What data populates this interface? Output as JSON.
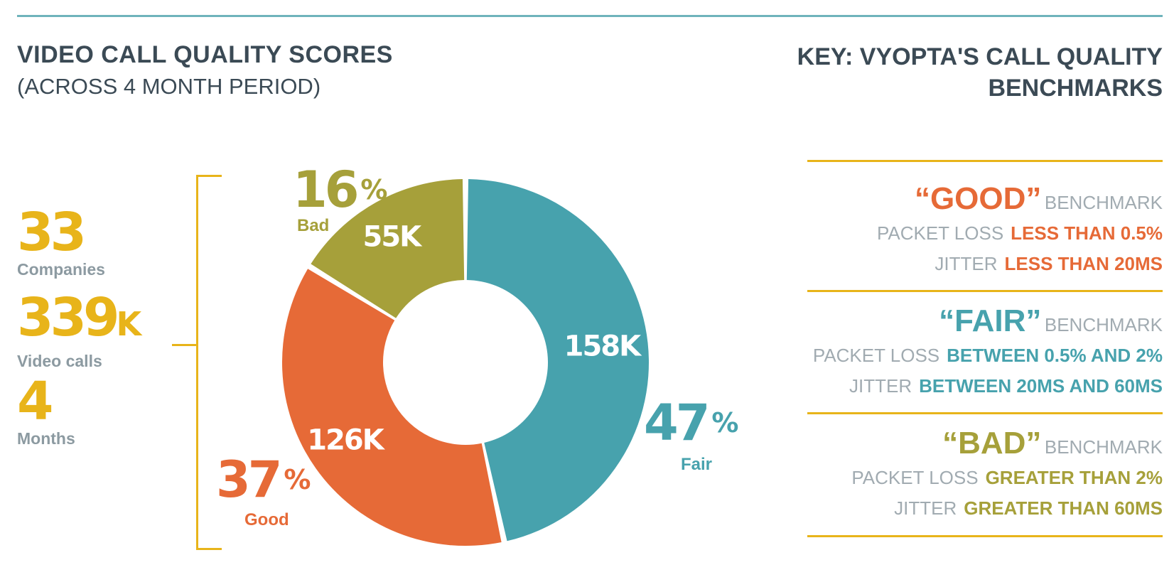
{
  "header": {
    "title": "VIDEO CALL QUALITY SCORES",
    "subtitle": "(ACROSS 4 MONTH PERIOD)",
    "key_title_line1": "KEY: VYOPTA'S CALL QUALITY",
    "key_title_line2": "BENCHMARKS"
  },
  "stats": {
    "companies": {
      "value": "33",
      "suffix": "",
      "label": "Companies"
    },
    "calls": {
      "value": "339",
      "suffix": "K",
      "label": "Video calls"
    },
    "months": {
      "value": "4",
      "suffix": "",
      "label": "Months"
    }
  },
  "labels": {
    "bad_pct": "16",
    "bad_name": "Bad",
    "good_pct": "37",
    "good_name": "Good",
    "fair_pct": "47",
    "fair_name": "Fair",
    "pct_sign": "%"
  },
  "chart_data": {
    "type": "pie",
    "title": "VIDEO CALL QUALITY SCORES",
    "categories": [
      "Fair",
      "Good",
      "Bad"
    ],
    "values": [
      158,
      126,
      55
    ],
    "value_labels": [
      "158K",
      "126K",
      "55K"
    ],
    "percentages": [
      47,
      37,
      16
    ],
    "colors": [
      "#47a2ad",
      "#e66a37",
      "#a6a03a"
    ],
    "donut": true
  },
  "key": {
    "good": {
      "name": "“GOOD”",
      "word": "BENCHMARK",
      "packet_label": "PACKET LOSS",
      "packet_value": "LESS THAN 0.5%",
      "jitter_label": "JITTER",
      "jitter_value": "LESS THAN 20MS",
      "color": "#e66a37"
    },
    "fair": {
      "name": "“FAIR”",
      "word": "BENCHMARK",
      "packet_label": "PACKET LOSS",
      "packet_value": "BETWEEN 0.5% AND 2%",
      "jitter_label": "JITTER",
      "jitter_value": "BETWEEN 20MS AND 60MS",
      "color": "#47a2ad"
    },
    "bad": {
      "name": "“BAD”",
      "word": "BENCHMARK",
      "packet_label": "PACKET LOSS",
      "packet_value": "GREATER THAN 2%",
      "jitter_label": "JITTER",
      "jitter_value": "GREATER THAN 60MS",
      "color": "#a6a03a"
    }
  },
  "colors": {
    "accent": "#e8b41a",
    "heading": "#3b4a55",
    "muted": "#a1abb1",
    "rule": "#6fb3bb"
  }
}
